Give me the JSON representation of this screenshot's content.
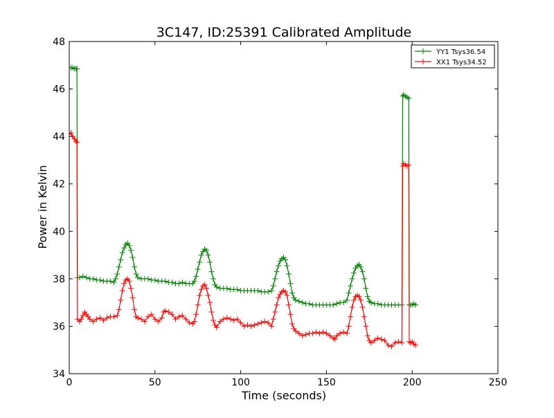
{
  "chart_data": {
    "type": "line",
    "title": "3C147, ID:25391 Calibrated Amplitude",
    "xlabel": "Time (seconds)",
    "ylabel": "Power in Kelvin",
    "xlim": [
      0,
      250
    ],
    "ylim": [
      34,
      48
    ],
    "xticks": [
      0,
      50,
      100,
      150,
      200,
      250
    ],
    "yticks": [
      34,
      36,
      38,
      40,
      42,
      44,
      46,
      48
    ],
    "grid": false,
    "legend_position": "top-right",
    "series": [
      {
        "name": "YY1 Tsys36.54",
        "color": "#008000",
        "marker": "plus",
        "points": [
          [
            0,
            46.9
          ],
          [
            1,
            46.9
          ],
          [
            2,
            46.9
          ],
          [
            3,
            46.85
          ],
          [
            4,
            46.85
          ],
          [
            4.5,
            46.85
          ],
          [
            4.8,
            38.05
          ],
          [
            6,
            38.05
          ],
          [
            8,
            38.1
          ],
          [
            10,
            38.05
          ],
          [
            12,
            38.0
          ],
          [
            14,
            38.0
          ],
          [
            16,
            37.95
          ],
          [
            18,
            37.95
          ],
          [
            20,
            37.9
          ],
          [
            22,
            37.9
          ],
          [
            24,
            37.9
          ],
          [
            26,
            37.85
          ],
          [
            27,
            38.0
          ],
          [
            28,
            38.2
          ],
          [
            29,
            38.5
          ],
          [
            30,
            38.8
          ],
          [
            31,
            39.1
          ],
          [
            32,
            39.3
          ],
          [
            33,
            39.45
          ],
          [
            34,
            39.5
          ],
          [
            35,
            39.4
          ],
          [
            36,
            39.2
          ],
          [
            37,
            38.9
          ],
          [
            38,
            38.5
          ],
          [
            39,
            38.2
          ],
          [
            40,
            38.05
          ],
          [
            42,
            38.0
          ],
          [
            44,
            38.0
          ],
          [
            46,
            38.0
          ],
          [
            48,
            37.95
          ],
          [
            50,
            37.95
          ],
          [
            52,
            37.9
          ],
          [
            54,
            37.9
          ],
          [
            56,
            37.9
          ],
          [
            58,
            37.85
          ],
          [
            60,
            37.85
          ],
          [
            62,
            37.8
          ],
          [
            64,
            37.8
          ],
          [
            66,
            37.85
          ],
          [
            68,
            37.8
          ],
          [
            70,
            37.8
          ],
          [
            72,
            37.8
          ],
          [
            73,
            37.9
          ],
          [
            74,
            38.1
          ],
          [
            75,
            38.4
          ],
          [
            76,
            38.7
          ],
          [
            77,
            39.0
          ],
          [
            78,
            39.15
          ],
          [
            79,
            39.25
          ],
          [
            80,
            39.2
          ],
          [
            81,
            39.0
          ],
          [
            82,
            38.7
          ],
          [
            83,
            38.3
          ],
          [
            84,
            38.0
          ],
          [
            85,
            37.75
          ],
          [
            86,
            37.65
          ],
          [
            88,
            37.6
          ],
          [
            90,
            37.6
          ],
          [
            92,
            37.6
          ],
          [
            94,
            37.55
          ],
          [
            96,
            37.55
          ],
          [
            98,
            37.55
          ],
          [
            100,
            37.5
          ],
          [
            102,
            37.5
          ],
          [
            104,
            37.5
          ],
          [
            106,
            37.5
          ],
          [
            108,
            37.5
          ],
          [
            110,
            37.5
          ],
          [
            112,
            37.45
          ],
          [
            114,
            37.45
          ],
          [
            116,
            37.45
          ],
          [
            118,
            37.5
          ],
          [
            119,
            37.7
          ],
          [
            120,
            38.0
          ],
          [
            121,
            38.3
          ],
          [
            122,
            38.55
          ],
          [
            123,
            38.75
          ],
          [
            124,
            38.85
          ],
          [
            125,
            38.9
          ],
          [
            126,
            38.8
          ],
          [
            127,
            38.55
          ],
          [
            128,
            38.2
          ],
          [
            129,
            37.8
          ],
          [
            130,
            37.4
          ],
          [
            131,
            37.2
          ],
          [
            132,
            37.1
          ],
          [
            134,
            37.05
          ],
          [
            136,
            37.0
          ],
          [
            138,
            36.95
          ],
          [
            140,
            36.95
          ],
          [
            142,
            36.9
          ],
          [
            144,
            36.9
          ],
          [
            146,
            36.9
          ],
          [
            148,
            36.9
          ],
          [
            150,
            36.9
          ],
          [
            152,
            36.9
          ],
          [
            154,
            36.9
          ],
          [
            156,
            36.95
          ],
          [
            158,
            37.0
          ],
          [
            160,
            37.0
          ],
          [
            162,
            37.1
          ],
          [
            163,
            37.4
          ],
          [
            164,
            37.7
          ],
          [
            165,
            38.0
          ],
          [
            166,
            38.25
          ],
          [
            167,
            38.45
          ],
          [
            168,
            38.55
          ],
          [
            169,
            38.6
          ],
          [
            170,
            38.5
          ],
          [
            171,
            38.3
          ],
          [
            172,
            38.0
          ],
          [
            173,
            37.6
          ],
          [
            174,
            37.25
          ],
          [
            175,
            37.05
          ],
          [
            176,
            37.0
          ],
          [
            178,
            36.95
          ],
          [
            180,
            36.95
          ],
          [
            182,
            36.9
          ],
          [
            184,
            36.9
          ],
          [
            186,
            36.9
          ],
          [
            188,
            36.9
          ],
          [
            190,
            36.9
          ],
          [
            192,
            36.9
          ],
          [
            194,
            36.9
          ],
          [
            194.5,
            45.7
          ],
          [
            195,
            45.75
          ],
          [
            196,
            45.7
          ],
          [
            197,
            45.65
          ],
          [
            198,
            45.6
          ],
          [
            198.3,
            36.9
          ],
          [
            199,
            36.9
          ],
          [
            200,
            36.9
          ],
          [
            201,
            36.95
          ],
          [
            202,
            36.9
          ]
        ]
      },
      {
        "name": "XX1 Tsys34.52",
        "color": "#ff0000",
        "marker": "plus",
        "points": [
          [
            0,
            44.1
          ],
          [
            1,
            44.15
          ],
          [
            2,
            44.0
          ],
          [
            3,
            43.9
          ],
          [
            4,
            43.8
          ],
          [
            4.5,
            43.75
          ],
          [
            4.8,
            36.3
          ],
          [
            6,
            36.2
          ],
          [
            7,
            36.3
          ],
          [
            8,
            36.45
          ],
          [
            9,
            36.6
          ],
          [
            10,
            36.5
          ],
          [
            11,
            36.4
          ],
          [
            12,
            36.3
          ],
          [
            14,
            36.2
          ],
          [
            16,
            36.3
          ],
          [
            18,
            36.35
          ],
          [
            20,
            36.25
          ],
          [
            22,
            36.35
          ],
          [
            24,
            36.4
          ],
          [
            26,
            36.4
          ],
          [
            28,
            36.45
          ],
          [
            29,
            36.7
          ],
          [
            30,
            37.1
          ],
          [
            31,
            37.5
          ],
          [
            32,
            37.8
          ],
          [
            33,
            37.95
          ],
          [
            34,
            38.0
          ],
          [
            35,
            37.9
          ],
          [
            36,
            37.6
          ],
          [
            37,
            37.2
          ],
          [
            38,
            36.7
          ],
          [
            39,
            36.4
          ],
          [
            40,
            36.35
          ],
          [
            42,
            36.3
          ],
          [
            44,
            36.2
          ],
          [
            46,
            36.4
          ],
          [
            48,
            36.5
          ],
          [
            50,
            36.3
          ],
          [
            52,
            36.2
          ],
          [
            54,
            36.35
          ],
          [
            55,
            36.6
          ],
          [
            56,
            36.65
          ],
          [
            58,
            36.6
          ],
          [
            60,
            36.5
          ],
          [
            62,
            36.3
          ],
          [
            64,
            36.4
          ],
          [
            66,
            36.45
          ],
          [
            68,
            36.3
          ],
          [
            70,
            36.15
          ],
          [
            72,
            36.1
          ],
          [
            73,
            36.2
          ],
          [
            74,
            36.5
          ],
          [
            75,
            36.9
          ],
          [
            76,
            37.3
          ],
          [
            77,
            37.55
          ],
          [
            78,
            37.7
          ],
          [
            79,
            37.75
          ],
          [
            80,
            37.6
          ],
          [
            81,
            37.3
          ],
          [
            82,
            37.0
          ],
          [
            83,
            36.6
          ],
          [
            84,
            36.25
          ],
          [
            85,
            36.05
          ],
          [
            86,
            35.95
          ],
          [
            88,
            36.2
          ],
          [
            90,
            36.3
          ],
          [
            92,
            36.35
          ],
          [
            94,
            36.3
          ],
          [
            96,
            36.25
          ],
          [
            98,
            36.3
          ],
          [
            100,
            36.15
          ],
          [
            102,
            36.0
          ],
          [
            104,
            36.05
          ],
          [
            106,
            36.0
          ],
          [
            108,
            36.05
          ],
          [
            110,
            36.1
          ],
          [
            112,
            36.15
          ],
          [
            114,
            36.2
          ],
          [
            116,
            36.15
          ],
          [
            118,
            36.0
          ],
          [
            119,
            36.3
          ],
          [
            120,
            36.6
          ],
          [
            121,
            36.9
          ],
          [
            122,
            37.2
          ],
          [
            123,
            37.35
          ],
          [
            124,
            37.45
          ],
          [
            125,
            37.5
          ],
          [
            126,
            37.45
          ],
          [
            127,
            37.3
          ],
          [
            128,
            36.9
          ],
          [
            129,
            36.5
          ],
          [
            130,
            36.1
          ],
          [
            131,
            35.9
          ],
          [
            132,
            35.8
          ],
          [
            134,
            35.7
          ],
          [
            136,
            35.6
          ],
          [
            138,
            35.65
          ],
          [
            140,
            35.7
          ],
          [
            142,
            35.7
          ],
          [
            144,
            35.75
          ],
          [
            146,
            35.7
          ],
          [
            148,
            35.75
          ],
          [
            150,
            35.7
          ],
          [
            152,
            35.6
          ],
          [
            154,
            35.5
          ],
          [
            155,
            35.45
          ],
          [
            156,
            35.6
          ],
          [
            158,
            35.7
          ],
          [
            160,
            35.75
          ],
          [
            162,
            35.7
          ],
          [
            163,
            36.0
          ],
          [
            164,
            36.4
          ],
          [
            165,
            36.8
          ],
          [
            166,
            37.1
          ],
          [
            167,
            37.25
          ],
          [
            168,
            37.3
          ],
          [
            169,
            37.25
          ],
          [
            170,
            37.1
          ],
          [
            171,
            36.8
          ],
          [
            172,
            36.4
          ],
          [
            173,
            36.0
          ],
          [
            174,
            35.6
          ],
          [
            175,
            35.4
          ],
          [
            176,
            35.3
          ],
          [
            178,
            35.4
          ],
          [
            180,
            35.5
          ],
          [
            182,
            35.45
          ],
          [
            184,
            35.4
          ],
          [
            186,
            35.2
          ],
          [
            188,
            35.15
          ],
          [
            190,
            35.3
          ],
          [
            192,
            35.35
          ],
          [
            194,
            35.3
          ],
          [
            194.5,
            42.75
          ],
          [
            195,
            42.85
          ],
          [
            196,
            42.8
          ],
          [
            197,
            42.75
          ],
          [
            198,
            42.8
          ],
          [
            198.3,
            35.35
          ],
          [
            199,
            35.3
          ],
          [
            200,
            35.35
          ],
          [
            201,
            35.25
          ],
          [
            202,
            35.2
          ]
        ]
      }
    ]
  }
}
